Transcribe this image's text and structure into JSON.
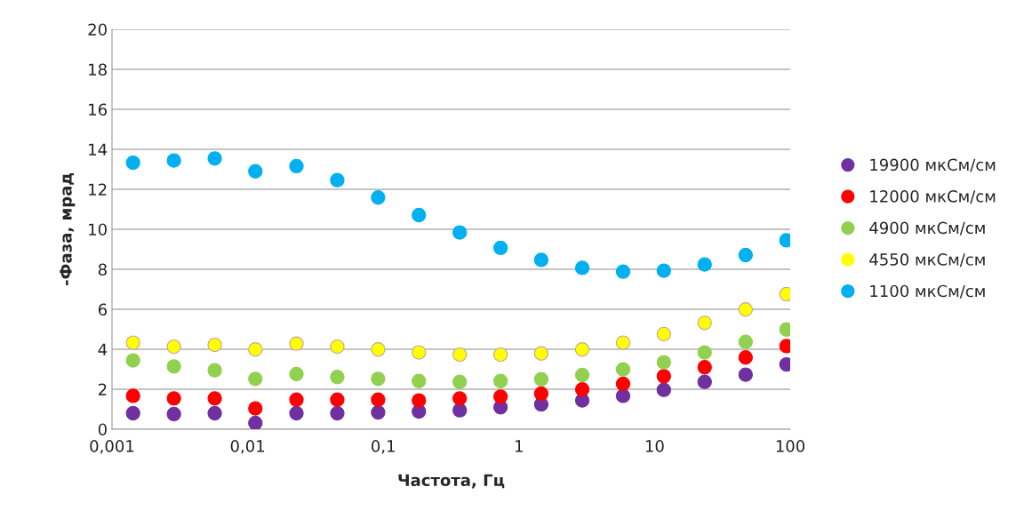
{
  "chart_data": {
    "type": "scatter",
    "xlabel": "Частота, Гц",
    "ylabel": "-Фаза, мрад",
    "log": "x",
    "grid": "y",
    "legend": "right",
    "marker": "circle",
    "x": [
      0.00143,
      0.00286,
      0.00572,
      0.0114,
      0.0229,
      0.0458,
      0.0916,
      0.183,
      0.366,
      0.732,
      1.46,
      2.93,
      5.86,
      11.7,
      23.4,
      46.9,
      93.8
    ],
    "xlim": [
      0.001,
      100
    ],
    "xticks": [
      {
        "value": 0.001,
        "label": "0,001"
      },
      {
        "value": 0.01,
        "label": "0,01"
      },
      {
        "value": 0.1,
        "label": "0,1"
      },
      1,
      10,
      100
    ],
    "ylim": [
      0,
      20
    ],
    "yticks": [
      0,
      2,
      4,
      6,
      8,
      10,
      12,
      14,
      16,
      18,
      20
    ],
    "series": [
      {
        "name": "19900 мкСм/см",
        "color": "#7030a0",
        "values": [
          0.8,
          0.76,
          0.8,
          0.31,
          0.8,
          0.8,
          0.84,
          0.89,
          0.95,
          1.1,
          1.24,
          1.44,
          1.67,
          1.97,
          2.37,
          2.73,
          3.24
        ]
      },
      {
        "name": "12000 мкСм/см",
        "color": "#ff0000",
        "values": [
          1.67,
          1.54,
          1.54,
          1.04,
          1.48,
          1.48,
          1.48,
          1.44,
          1.54,
          1.63,
          1.78,
          1.99,
          2.27,
          2.65,
          3.1,
          3.59,
          4.16
        ]
      },
      {
        "name": "4900 мкСм/см",
        "color": "#92d050",
        "values": [
          3.44,
          3.14,
          2.95,
          2.52,
          2.76,
          2.61,
          2.52,
          2.41,
          2.37,
          2.41,
          2.5,
          2.71,
          2.99,
          3.35,
          3.84,
          4.37,
          4.99
        ]
      },
      {
        "name": "4550 мкСм/см",
        "color": "#ffff00",
        "values": [
          4.33,
          4.13,
          4.22,
          3.99,
          4.28,
          4.13,
          3.99,
          3.84,
          3.73,
          3.73,
          3.79,
          3.99,
          4.33,
          4.76,
          5.32,
          5.99,
          6.76
        ]
      },
      {
        "name": "1100 мкСм/см",
        "color": "#00b0f0",
        "values": [
          13.33,
          13.44,
          13.54,
          12.9,
          13.16,
          12.46,
          11.59,
          10.71,
          9.84,
          9.07,
          8.47,
          8.07,
          7.88,
          7.93,
          8.24,
          8.71,
          9.45
        ]
      }
    ]
  }
}
